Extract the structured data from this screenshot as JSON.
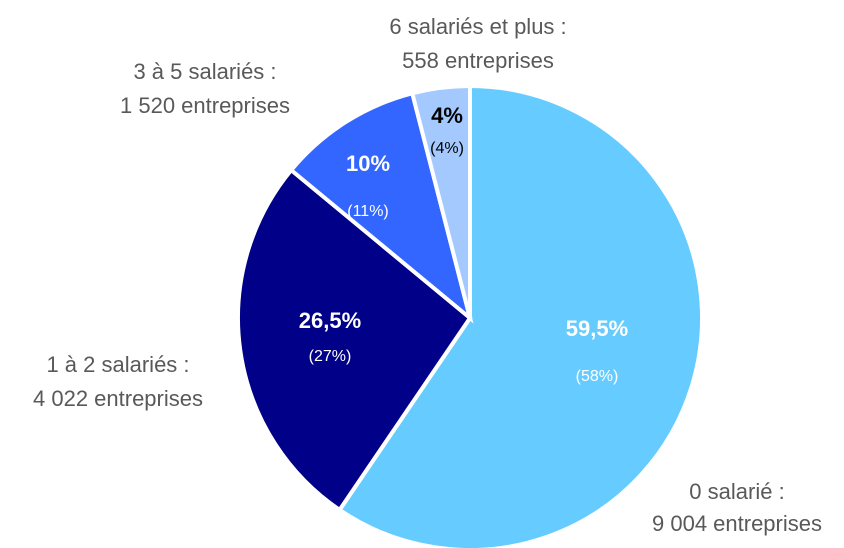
{
  "chart_data": {
    "type": "pie",
    "categories": [
      "0 salarié :",
      "1 à 2 salariés :",
      "3 à 5 salariés :",
      "6 salariés et plus :"
    ],
    "details": [
      "9 004 entreprises",
      "4 022 entreprises",
      "1 520 entreprises",
      "558 entreprises"
    ],
    "values": [
      59.5,
      26.5,
      10,
      4
    ],
    "value_labels": [
      "59,5%",
      "26,5%",
      "10%",
      "4%"
    ],
    "values2": [
      58,
      27,
      11,
      4
    ],
    "value2_labels": [
      "(58%)",
      "(27%)",
      "(11%)",
      "(4%)"
    ],
    "colors": [
      "#66ccff",
      "#000088",
      "#3366ff",
      "#a3c9ff"
    ]
  }
}
